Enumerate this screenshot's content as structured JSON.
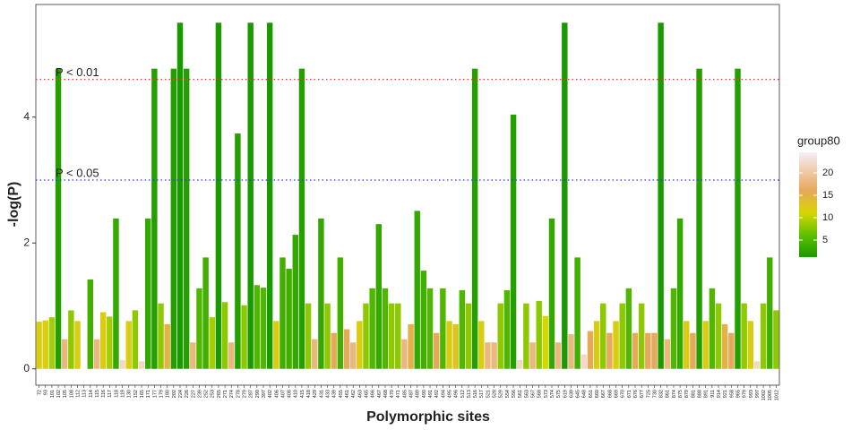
{
  "chart_data": {
    "type": "bar",
    "xlabel": "Polymorphic sites",
    "ylabel": "-log(P)",
    "ylim": [
      -0.26,
      5.79
    ],
    "yticks": [
      0,
      2,
      4
    ],
    "categories": [
      "72",
      "93",
      "101",
      "102",
      "105",
      "108",
      "112",
      "113",
      "114",
      "115",
      "116",
      "117",
      "118",
      "119",
      "130",
      "152",
      "165",
      "171",
      "177",
      "179",
      "180",
      "202",
      "224",
      "226",
      "227",
      "239",
      "252",
      "253",
      "265",
      "271",
      "274",
      "278",
      "279",
      "287",
      "290",
      "397",
      "402",
      "406",
      "407",
      "408",
      "410",
      "415",
      "418",
      "429",
      "431",
      "433",
      "439",
      "455",
      "461",
      "462",
      "463",
      "465",
      "466",
      "467",
      "468",
      "470",
      "471",
      "485",
      "487",
      "489",
      "490",
      "491",
      "492",
      "494",
      "495",
      "496",
      "512",
      "513",
      "516",
      "517",
      "521",
      "528",
      "529",
      "554",
      "556",
      "561",
      "563",
      "567",
      "568",
      "573",
      "574",
      "575",
      "619",
      "639",
      "645",
      "648",
      "651",
      "660",
      "667",
      "668",
      "669",
      "670",
      "671",
      "676",
      "677",
      "725",
      "730",
      "832",
      "861",
      "874",
      "875",
      "879",
      "881",
      "888",
      "891",
      "911",
      "914",
      "921",
      "958",
      "965",
      "979",
      "993",
      "997",
      "1002",
      "1005",
      "1012"
    ],
    "values": [
      0.75,
      0.77,
      0.82,
      4.77,
      0.47,
      0.93,
      0.76,
      0,
      1.42,
      0.47,
      0.9,
      0.83,
      2.39,
      0.14,
      0.76,
      0.93,
      0.12,
      2.39,
      4.77,
      1.04,
      0.71,
      4.77,
      5.5,
      4.77,
      0.42,
      1.28,
      1.77,
      0.82,
      5.5,
      1.06,
      0.42,
      3.74,
      1.01,
      5.5,
      1.33,
      1.29,
      5.5,
      0.76,
      1.77,
      1.59,
      2.13,
      4.77,
      1.04,
      0.47,
      2.39,
      1.04,
      0.57,
      1.77,
      0.63,
      0.42,
      0.76,
      1.04,
      1.28,
      2.3,
      1.28,
      1.04,
      1.04,
      0.47,
      0.71,
      2.51,
      1.56,
      1.28,
      0.57,
      1.28,
      0.76,
      0.71,
      1.25,
      1.04,
      4.77,
      0.76,
      0.42,
      0.42,
      1.04,
      1.25,
      4.04,
      0.14,
      1.04,
      0.42,
      1.08,
      0.84,
      2.39,
      0.42,
      5.5,
      0.55,
      1.77,
      0.23,
      0.6,
      0.76,
      1.04,
      0.57,
      0.76,
      1.04,
      1.28,
      0.57,
      1.04,
      0.57,
      0.57,
      5.5,
      0.47,
      1.28,
      2.39,
      0.76,
      0.57,
      4.77,
      0.76,
      1.28,
      1.04,
      0.71,
      0.57,
      4.77,
      1.04,
      0.76,
      0.12,
      1.04,
      1.77,
      0.93
    ],
    "groups": [
      12,
      12,
      9,
      2,
      18,
      8,
      12,
      12,
      4,
      18,
      12,
      9,
      3,
      22,
      12,
      8,
      22,
      3,
      2,
      8,
      15,
      2,
      1,
      2,
      18,
      5,
      4,
      9,
      1,
      8,
      18,
      2,
      8,
      1,
      5,
      5,
      1,
      12,
      4,
      4,
      3,
      2,
      8,
      18,
      3,
      8,
      16,
      4,
      16,
      18,
      12,
      8,
      5,
      3,
      5,
      8,
      8,
      18,
      15,
      3,
      4,
      5,
      16,
      5,
      12,
      13,
      5,
      8,
      2,
      12,
      18,
      18,
      8,
      5,
      2,
      22,
      8,
      18,
      8,
      11,
      3,
      18,
      1,
      18,
      4,
      22,
      16,
      12,
      8,
      16,
      12,
      8,
      5,
      16,
      8,
      16,
      16,
      1,
      18,
      5,
      3,
      12,
      16,
      2,
      12,
      5,
      8,
      15,
      16,
      2,
      8,
      12,
      22,
      8,
      4,
      8
    ],
    "reference_lines": [
      {
        "value": 4.6,
        "label": "P < 0.01",
        "color": "#ff3030"
      },
      {
        "value": 3.0,
        "label": "P < 0.05",
        "color": "#3030ff"
      }
    ],
    "colorbar": {
      "title": "group80",
      "range": [
        1.2,
        24.6
      ],
      "ticks": [
        5,
        10,
        15,
        20
      ],
      "stops": [
        [
          1.2,
          "#1a9900"
        ],
        [
          6,
          "#5ebf00"
        ],
        [
          11,
          "#d6d600"
        ],
        [
          16,
          "#e6a85a"
        ],
        [
          24.6,
          "#f6eef4"
        ]
      ]
    }
  }
}
